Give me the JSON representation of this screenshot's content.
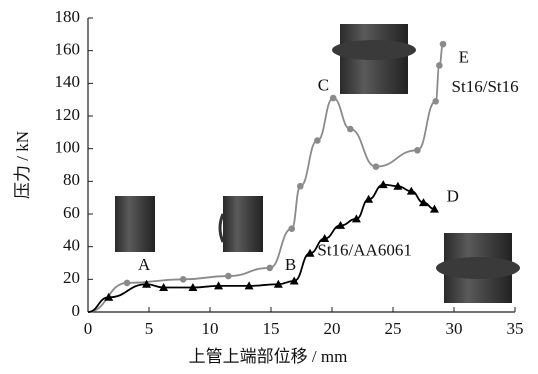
{
  "chart_data": {
    "type": "line",
    "xlabel": "上管上端部位移 / mm",
    "ylabel": "压力 / kN",
    "xlim": [
      0,
      35
    ],
    "ylim": [
      0,
      180
    ],
    "xticks": [
      0,
      5,
      10,
      15,
      20,
      25,
      30,
      35
    ],
    "yticks": [
      0,
      20,
      40,
      60,
      80,
      100,
      120,
      140,
      160,
      180
    ],
    "series": [
      {
        "name": "St16/St16",
        "color": "#8a8a8a",
        "marker": "circle",
        "x": [
          3.2,
          7.8,
          11.5,
          14.9,
          16.7,
          17.4,
          18.8,
          20.1,
          21.5,
          23.6,
          27,
          28.5,
          28.8,
          29.1
        ],
        "values": [
          17.8,
          20,
          22,
          27,
          51,
          77,
          105,
          131,
          112,
          89,
          99,
          129,
          151,
          164
        ]
      },
      {
        "name": "St16/AA6061",
        "color": "#000000",
        "marker": "triangle",
        "x": [
          1.7,
          4.8,
          6.2,
          8.6,
          10.7,
          13.2,
          15.6,
          16.9,
          18.2,
          19.4,
          20.7,
          22,
          23,
          24.2,
          25.4,
          26.5,
          27.5,
          28.4
        ],
        "values": [
          9,
          17,
          15,
          15,
          16,
          16,
          17,
          19,
          36,
          45,
          53,
          57,
          69,
          78,
          77,
          74,
          67,
          63
        ]
      }
    ],
    "annotations": [
      {
        "text": "A",
        "x": 4.6,
        "y": 28
      },
      {
        "text": "B",
        "x": 16.6,
        "y": 28
      },
      {
        "text": "C",
        "x": 19.3,
        "y": 138
      },
      {
        "text": "D",
        "x": 29.9,
        "y": 70
      },
      {
        "text": "E",
        "x": 30.8,
        "y": 155
      }
    ],
    "series_labels": [
      {
        "series": 0,
        "x": 29.8,
        "y": 137
      },
      {
        "series": 1,
        "x": 18.8,
        "y": 37
      }
    ]
  }
}
